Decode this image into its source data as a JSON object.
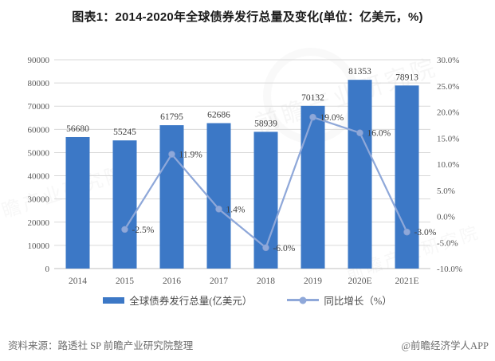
{
  "page": {
    "title": "图表1：2014-2020年全球债券发行总量及变化(单位：亿美元，%)"
  },
  "chart_data": {
    "type": "combo-bar-line",
    "title": "图表1：2014-2020年全球债券发行总量及变化(单位：亿美元，%)",
    "categories": [
      "2014",
      "2015",
      "2016",
      "2017",
      "2018",
      "2019",
      "2020E",
      "2021E"
    ],
    "series": [
      {
        "name": "全球债券发行总量(亿美元）",
        "type": "bar",
        "axis": "left",
        "color": "#3C78C6",
        "values": [
          56680,
          55245,
          61795,
          62686,
          58939,
          70132,
          81353,
          78913
        ],
        "labels": [
          "56680",
          "55245",
          "61795",
          "62686",
          "58939",
          "70132",
          "81353",
          "78913"
        ]
      },
      {
        "name": "同比增长（%）",
        "type": "line",
        "axis": "right",
        "color": "#8FA8D9",
        "values": [
          null,
          -2.5,
          11.9,
          1.4,
          -6.0,
          19.0,
          16.0,
          -3.0
        ],
        "labels": [
          null,
          "-2.5%",
          "11.9%",
          "1.4%",
          "-6.0%",
          "19.0%",
          "16.0%",
          "-3.0%"
        ]
      }
    ],
    "left_axis": {
      "min": 0,
      "max": 90000,
      "step": 10000,
      "tick_labels": [
        "0",
        "10000",
        "20000",
        "30000",
        "40000",
        "50000",
        "60000",
        "70000",
        "80000",
        "90000"
      ]
    },
    "right_axis": {
      "min": -10,
      "max": 30,
      "step": 5,
      "tick_labels": [
        "-10.0%",
        "-5.0%",
        "0.0%",
        "5.0%",
        "10.0%",
        "15.0%",
        "20.0%",
        "25.0%",
        "30.0%"
      ]
    },
    "grid": true,
    "legend_position": "bottom"
  },
  "footer": {
    "source": "资料来源：路透社 SP 前瞻产业研究院整理",
    "brand": "@前瞻经济学人APP"
  },
  "watermark": {
    "text": "前瞻产业研究院"
  },
  "colors": {
    "bar": "#3C78C6",
    "line": "#8FA8D9",
    "grid": "#D9D9D9",
    "axis_text": "#595959",
    "label_text": "#3f3f3f"
  }
}
